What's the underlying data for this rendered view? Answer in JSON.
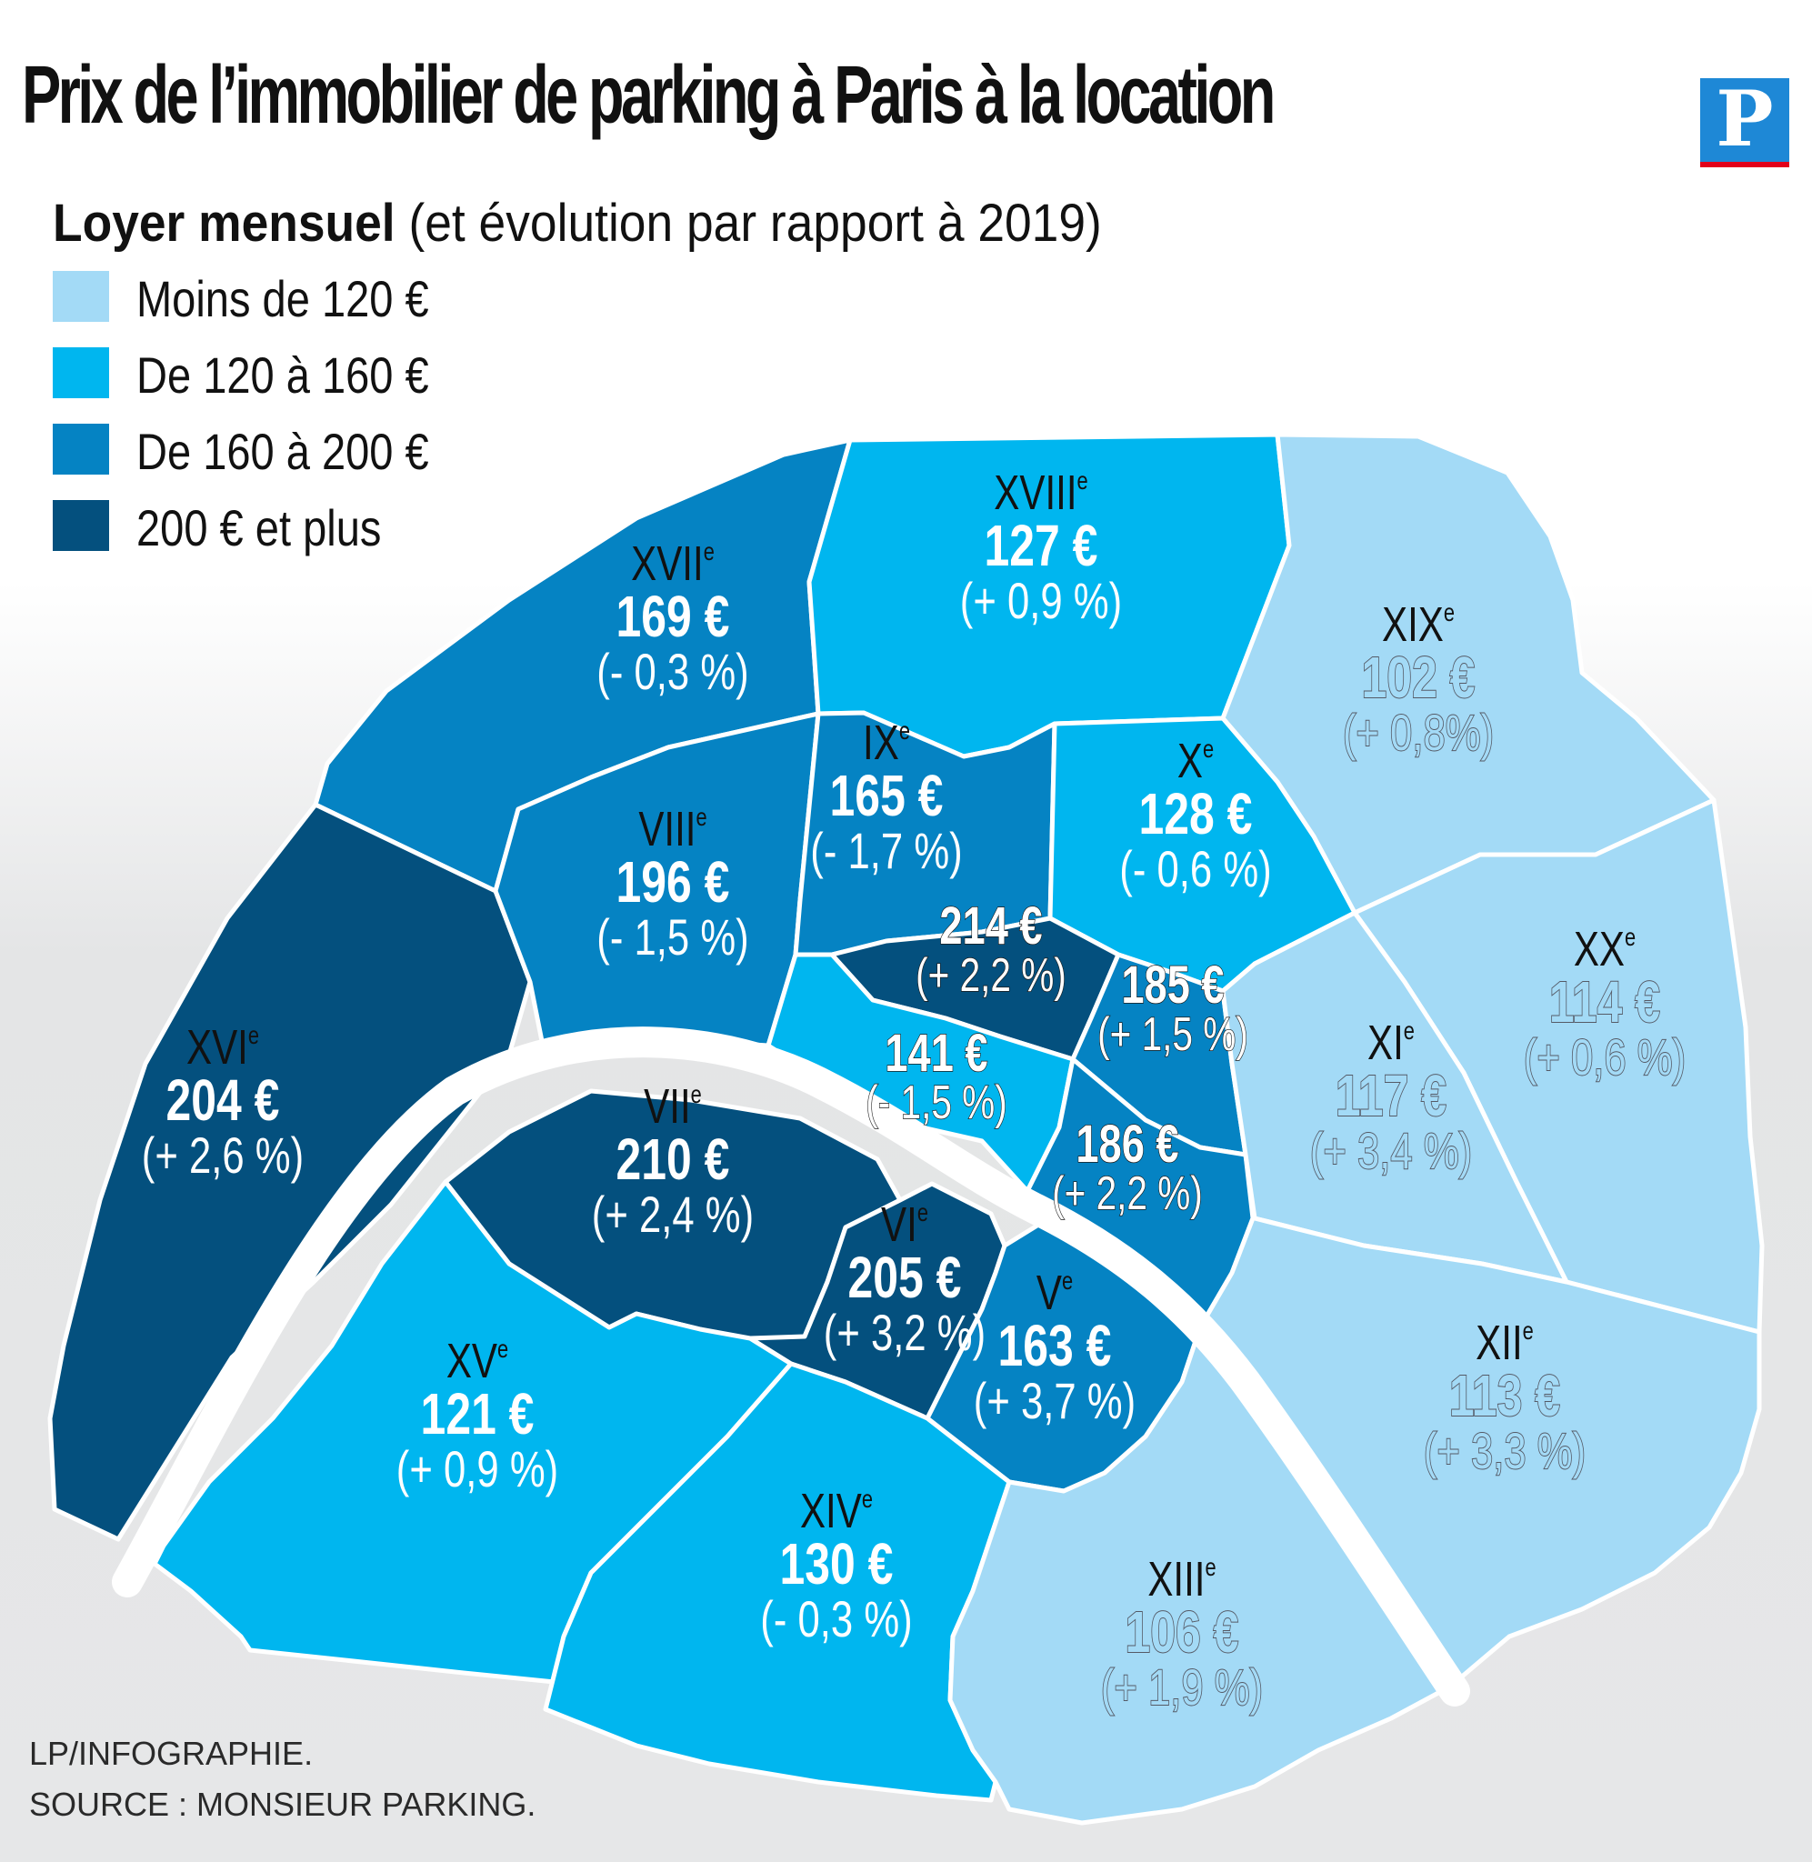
{
  "header": {
    "title": "Prix de l’immobilier de parking à Paris à la location",
    "subtitle_bold": "Loyer mensuel",
    "subtitle_rest": "(et évolution par rapport à 2019)",
    "logo_letter": "P",
    "logo_color": "#1e88d6",
    "logo_accent": "#e2001a"
  },
  "legend": [
    {
      "label": "Moins de 120 €",
      "color": "#a3daf6"
    },
    {
      "label": "De 120 à 160 €",
      "color": "#00b6ef"
    },
    {
      "label": "De 160 à 200 €",
      "color": "#0583c3"
    },
    {
      "label": "200 € et plus",
      "color": "#04507e"
    }
  ],
  "map": {
    "stroke_color": "#ffffff",
    "arrondissements": [
      {
        "id": "17",
        "name": "XVII",
        "sup": "e",
        "price": "169 €",
        "change": "(- 0,3 %)",
        "rent_eur": 169,
        "tier": 2
      },
      {
        "id": "18",
        "name": "XVIII",
        "sup": "e",
        "price": "127 €",
        "change": "(+ 0,9 %)",
        "rent_eur": 127,
        "tier": 1
      },
      {
        "id": "19",
        "name": "XIX",
        "sup": "e",
        "price": "102 €",
        "change": "(+ 0,8%)",
        "rent_eur": 102,
        "tier": 0
      },
      {
        "id": "16",
        "name": "XVI",
        "sup": "e",
        "price": "204 €",
        "change": "(+ 2,6 %)",
        "rent_eur": 204,
        "tier": 3
      },
      {
        "id": "8",
        "name": "VIII",
        "sup": "e",
        "price": "196 €",
        "change": "(- 1,5 %)",
        "rent_eur": 196,
        "tier": 2
      },
      {
        "id": "9",
        "name": "IX",
        "sup": "e",
        "price": "165 €",
        "change": "(- 1,7 %)",
        "rent_eur": 165,
        "tier": 2
      },
      {
        "id": "10",
        "name": "X",
        "sup": "e",
        "price": "128 €",
        "change": "(- 0,6 %)",
        "rent_eur": 128,
        "tier": 1
      },
      {
        "id": "20",
        "name": "XX",
        "sup": "e",
        "price": "114 €",
        "change": "(+ 0,6 %)",
        "rent_eur": 114,
        "tier": 0
      },
      {
        "id": "2",
        "name": "",
        "sup": "",
        "price": "214 €",
        "change": "(+ 2,2 %)",
        "rent_eur": 214,
        "tier": 3
      },
      {
        "id": "3",
        "name": "",
        "sup": "",
        "price": "185 €",
        "change": "(+ 1,5 %)",
        "rent_eur": 185,
        "tier": 2
      },
      {
        "id": "1",
        "name": "",
        "sup": "",
        "price": "141 €",
        "change": "(- 1,5 %)",
        "rent_eur": 141,
        "tier": 1
      },
      {
        "id": "4",
        "name": "",
        "sup": "",
        "price": "186 €",
        "change": "(+ 2,2 %)",
        "rent_eur": 186,
        "tier": 2
      },
      {
        "id": "11",
        "name": "XI",
        "sup": "e",
        "price": "117 €",
        "change": "(+ 3,4 %)",
        "rent_eur": 117,
        "tier": 0
      },
      {
        "id": "7",
        "name": "VII",
        "sup": "e",
        "price": "210 €",
        "change": "(+ 2,4 %)",
        "rent_eur": 210,
        "tier": 3
      },
      {
        "id": "6",
        "name": "VI",
        "sup": "e",
        "price": "205 €",
        "change": "(+ 3,2 %)",
        "rent_eur": 205,
        "tier": 3
      },
      {
        "id": "5",
        "name": "V",
        "sup": "e",
        "price": "163 €",
        "change": "(+ 3,7 %)",
        "rent_eur": 163,
        "tier": 2
      },
      {
        "id": "15",
        "name": "XV",
        "sup": "e",
        "price": "121 €",
        "change": "(+ 0,9 %)",
        "rent_eur": 121,
        "tier": 1
      },
      {
        "id": "14",
        "name": "XIV",
        "sup": "e",
        "price": "130 €",
        "change": "(- 0,3 %)",
        "rent_eur": 130,
        "tier": 1
      },
      {
        "id": "13",
        "name": "XIII",
        "sup": "e",
        "price": "106 €",
        "change": "(+ 1,9 %)",
        "rent_eur": 106,
        "tier": 0
      },
      {
        "id": "12",
        "name": "XII",
        "sup": "e",
        "price": "113 €",
        "change": "(+ 3,3 %)",
        "rent_eur": 113,
        "tier": 0
      }
    ]
  },
  "credits": {
    "line1": "LP/INFOGRAPHIE.",
    "line2": "SOURCE : MONSIEUR PARKING."
  }
}
